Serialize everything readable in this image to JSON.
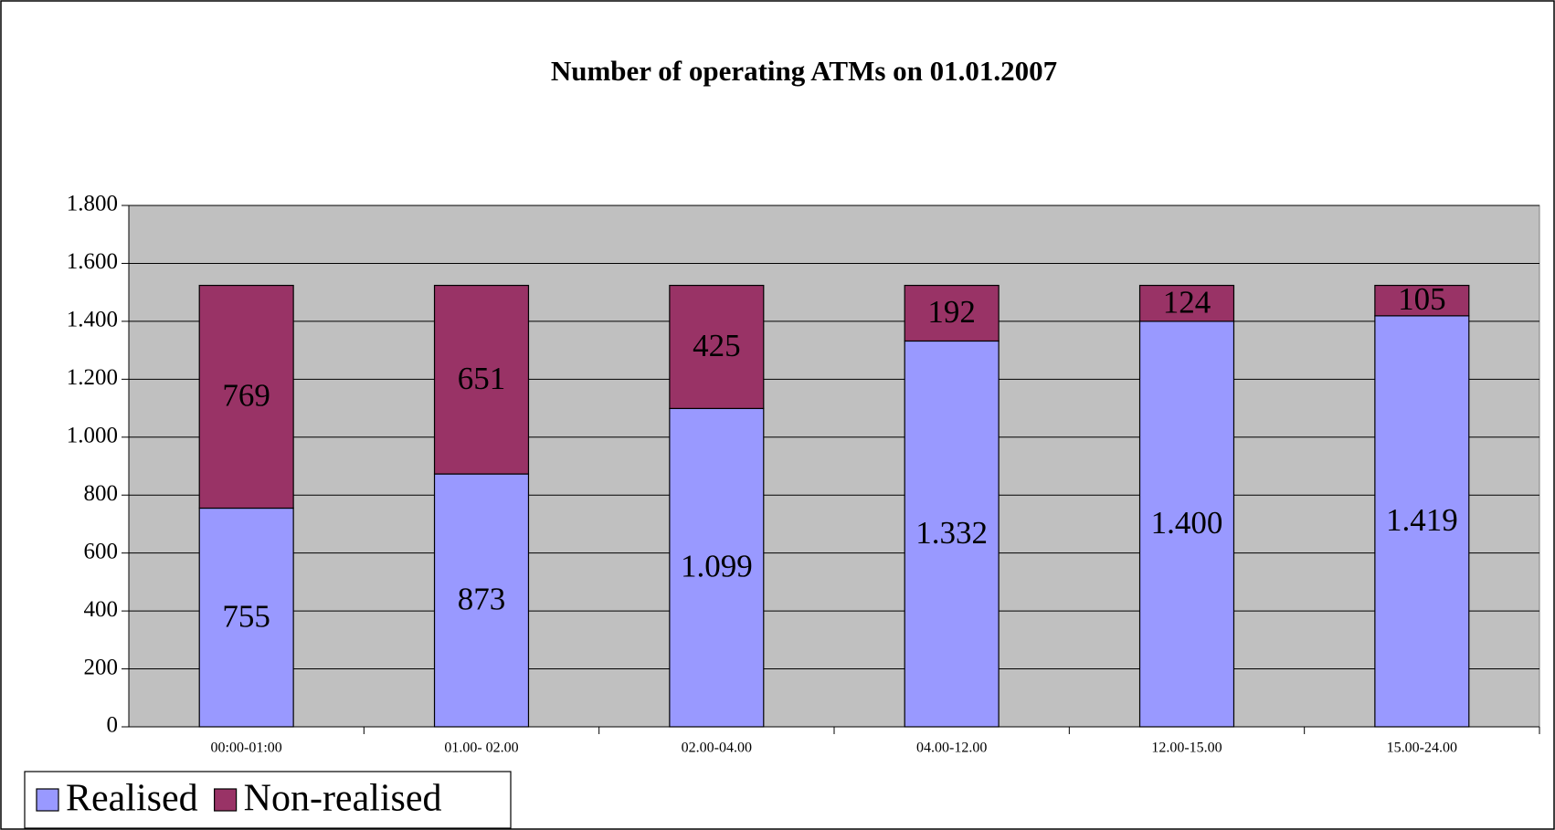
{
  "chart_data": {
    "type": "stacked_bar",
    "title": "Number of operating ATMs on 01.01.2007",
    "categories": [
      "00:00-01:00",
      "01.00- 02.00",
      "02.00-04.00",
      "04.00-12.00",
      "12.00-15.00",
      "15.00-24.00"
    ],
    "series": [
      {
        "name": "Realised",
        "color": "#9999ff",
        "values": [
          755,
          873,
          1099,
          1332,
          1400,
          1419
        ],
        "value_labels": [
          "755",
          "873",
          "1.099",
          "1.332",
          "1.400",
          "1.419"
        ]
      },
      {
        "name": "Non-realised",
        "color": "#993366",
        "values": [
          769,
          651,
          425,
          192,
          124,
          105
        ]
      }
    ],
    "ylim": [
      0,
      1800
    ],
    "yticks": [
      0,
      200,
      400,
      600,
      800,
      {
        "value": 1000,
        "label": "1.000"
      },
      {
        "value": 1200,
        "label": "1.200"
      },
      {
        "value": 1400,
        "label": "1.400"
      },
      {
        "value": 1600,
        "label": "1.600"
      },
      {
        "value": 1800,
        "label": "1.800"
      }
    ],
    "grid": true,
    "legend": "bottom-left"
  }
}
